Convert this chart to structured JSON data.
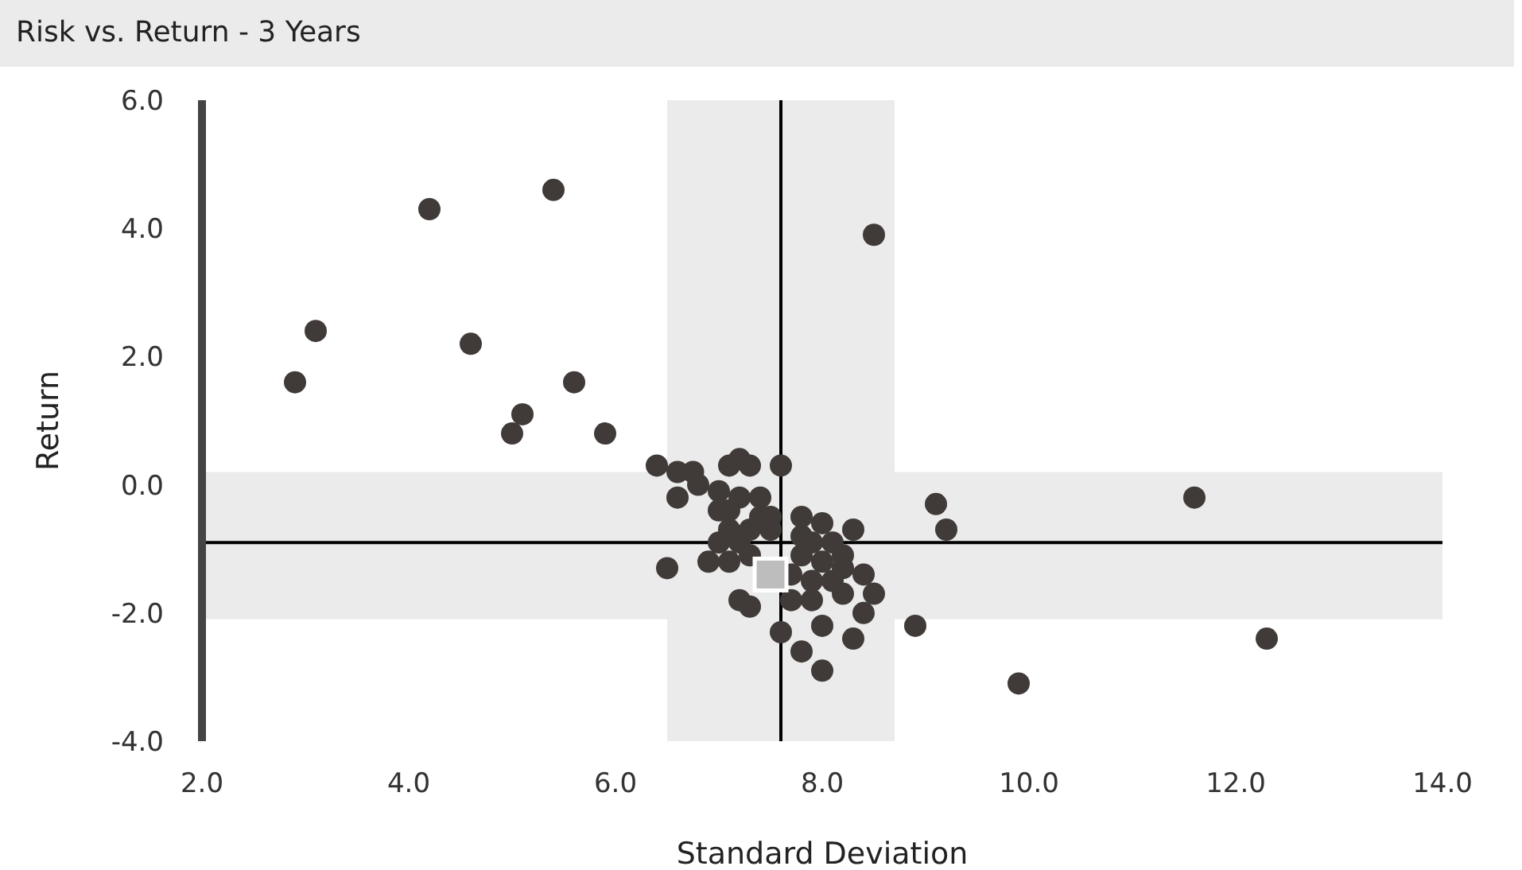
{
  "chart_data": {
    "type": "scatter",
    "title": "Risk vs. Return - 3 Years",
    "xlabel": "Standard Deviation",
    "ylabel": "Return",
    "xlim": [
      2,
      14
    ],
    "xticks": [
      {
        "value": 2,
        "label": "2.0"
      },
      {
        "value": 4,
        "label": "4.0"
      },
      {
        "value": 6,
        "label": "6.0"
      },
      {
        "value": 8,
        "label": "8.0"
      },
      {
        "value": 10,
        "label": "10.0"
      },
      {
        "value": 12,
        "label": "12.0"
      },
      {
        "value": 14,
        "label": "14.0"
      }
    ],
    "ylim": [
      -4,
      6
    ],
    "yticks": [
      {
        "value": -4,
        "label": "-4.0"
      },
      {
        "value": -2,
        "label": "-2.0"
      },
      {
        "value": 0,
        "label": "0.0"
      },
      {
        "value": 2,
        "label": "2.0"
      },
      {
        "value": 4,
        "label": "4.0"
      },
      {
        "value": 6,
        "label": "6.0"
      }
    ],
    "bands": [
      {
        "axis": "x",
        "from": 6.5,
        "to": 8.7,
        "color": "#ebebeb"
      },
      {
        "axis": "y",
        "from": -2.1,
        "to": 0.2,
        "color": "#ebebeb"
      }
    ],
    "ref_lines": [
      {
        "axis": "x",
        "value": 7.6,
        "color": "#000000"
      },
      {
        "axis": "y",
        "value": -0.9,
        "color": "#000000"
      }
    ],
    "series": [
      {
        "color": "#403b38",
        "marker": "circle",
        "x": [
          2.9,
          3.1,
          4.2,
          4.6,
          5.4,
          5.0,
          5.1,
          5.6,
          5.9,
          8.5,
          9.1,
          9.2,
          11.6,
          8.9,
          9.9,
          12.3,
          6.4,
          6.5,
          6.6,
          6.75,
          6.8,
          6.6,
          7.2,
          7.1,
          7.3,
          7.6,
          7.0,
          7.0,
          7.1,
          7.2,
          7.4,
          7.4,
          7.5,
          7.1,
          7.3,
          7.5,
          7.0,
          7.2,
          6.9,
          7.1,
          7.3,
          7.8,
          8.0,
          8.3,
          7.8,
          7.9,
          8.1,
          8.2,
          7.8,
          8.0,
          8.2,
          8.4,
          7.7,
          7.9,
          8.1,
          8.5,
          8.2,
          7.9,
          7.7,
          7.2,
          7.3,
          8.4,
          7.6,
          8.0,
          8.3,
          7.8,
          8.0
        ],
        "values": [
          1.6,
          2.4,
          4.3,
          2.2,
          4.6,
          0.8,
          1.1,
          1.6,
          0.8,
          3.9,
          -0.3,
          -0.7,
          -0.2,
          -2.2,
          -3.1,
          -2.4,
          0.3,
          -1.3,
          0.2,
          0.2,
          0.0,
          -0.2,
          0.4,
          0.3,
          0.3,
          0.3,
          -0.1,
          -0.4,
          -0.4,
          -0.2,
          -0.2,
          -0.5,
          -0.5,
          -0.7,
          -0.7,
          -0.7,
          -0.9,
          -0.9,
          -1.2,
          -1.2,
          -1.1,
          -0.5,
          -0.6,
          -0.7,
          -0.8,
          -0.9,
          -0.9,
          -1.1,
          -1.1,
          -1.2,
          -1.3,
          -1.4,
          -1.4,
          -1.5,
          -1.5,
          -1.7,
          -1.7,
          -1.8,
          -1.8,
          -1.8,
          -1.9,
          -2.0,
          -2.3,
          -2.2,
          -2.4,
          -2.6,
          -2.9
        ]
      },
      {
        "color": "#bdbdbd",
        "marker": "square",
        "x": [
          7.5
        ],
        "values": [
          -1.4
        ]
      }
    ]
  }
}
